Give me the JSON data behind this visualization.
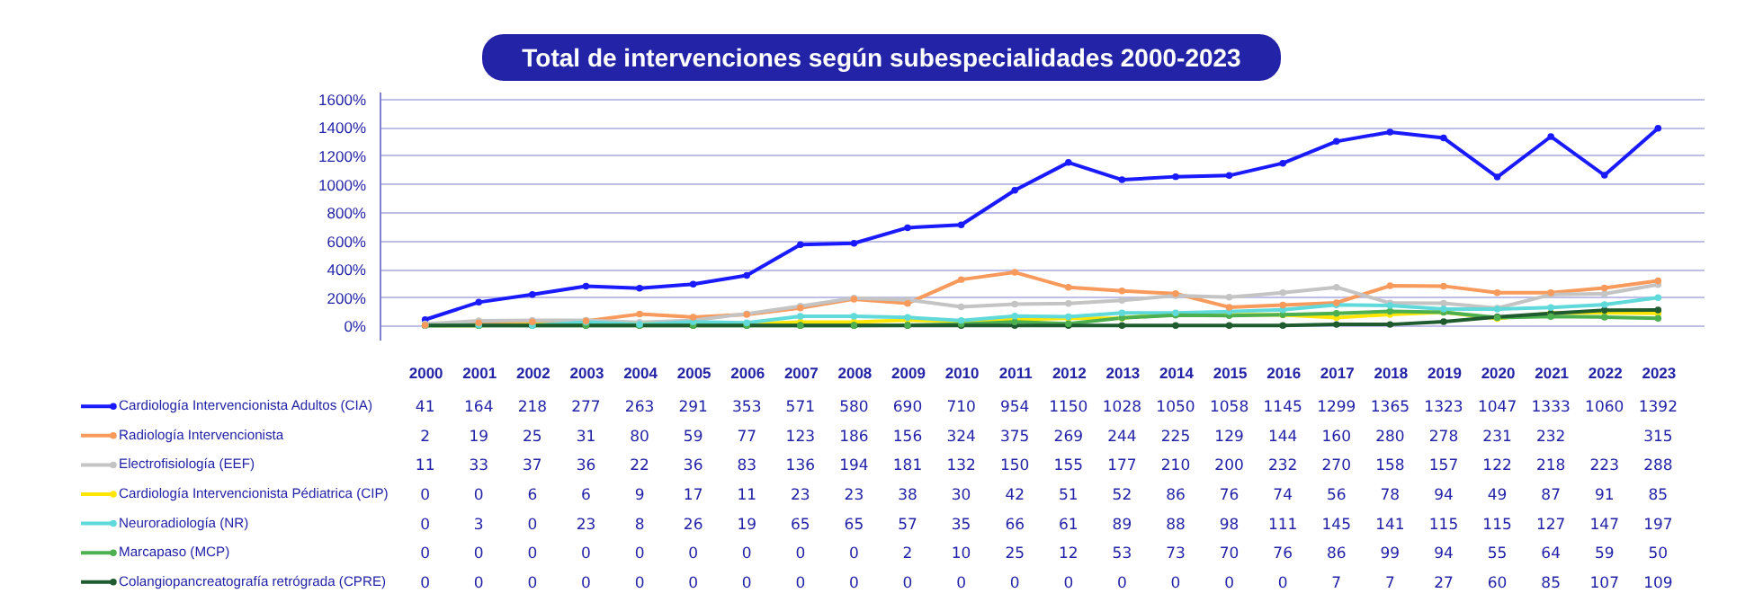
{
  "chart_data": {
    "type": "line",
    "title": "Total de intervenciones según subespecialidades 2000-2023",
    "categories": [
      "2000",
      "2001",
      "2002",
      "2003",
      "2004",
      "2005",
      "2006",
      "2007",
      "2008",
      "2009",
      "2010",
      "2011",
      "2012",
      "2013",
      "2014",
      "2015",
      "2016",
      "2017",
      "2018",
      "2019",
      "2020",
      "2021",
      "2022",
      "2023"
    ],
    "series": [
      {
        "name": "Cardiología Intervencionista Adultos (CIA)",
        "color": "#1a1aff",
        "values": [
          41,
          164,
          218,
          277,
          263,
          291,
          353,
          571,
          580,
          690,
          710,
          954,
          1150,
          1028,
          1050,
          1058,
          1145,
          1299,
          1365,
          1323,
          1047,
          1333,
          1060,
          1392
        ]
      },
      {
        "name": "Radiología Intervencionista",
        "color": "#f79a5b",
        "values": [
          2,
          19,
          25,
          31,
          80,
          59,
          77,
          123,
          186,
          156,
          324,
          375,
          269,
          244,
          225,
          129,
          144,
          160,
          280,
          278,
          231,
          232,
          265,
          315
        ],
        "value_labels": [
          "2",
          "19",
          "25",
          "31",
          "80",
          "59",
          "77",
          "123",
          "186",
          "156",
          "324",
          "375",
          "269",
          "244",
          "225",
          "129",
          "144",
          "160",
          "280",
          "278",
          "231",
          "232",
          null,
          "315"
        ]
      },
      {
        "name": "Electrofisiología (EEF)",
        "color": "#c4c4c4",
        "values": [
          11,
          33,
          37,
          36,
          22,
          36,
          83,
          136,
          194,
          181,
          132,
          150,
          155,
          177,
          210,
          200,
          232,
          270,
          158,
          157,
          122,
          218,
          223,
          288
        ]
      },
      {
        "name": "Cardiología Intervencionista Pédiatrica (CIP)",
        "color": "#ffe600",
        "values": [
          0,
          0,
          6,
          6,
          9,
          17,
          11,
          23,
          23,
          38,
          30,
          42,
          51,
          52,
          86,
          76,
          74,
          56,
          78,
          94,
          49,
          87,
          91,
          85
        ]
      },
      {
        "name": "Neuroradiología (NR)",
        "color": "#5fd9d9",
        "values": [
          0,
          3,
          0,
          23,
          8,
          26,
          19,
          65,
          65,
          57,
          35,
          66,
          61,
          89,
          88,
          98,
          111,
          145,
          141,
          115,
          115,
          127,
          147,
          197
        ]
      },
      {
        "name": "Marcapaso (MCP)",
        "color": "#4caf50",
        "values": [
          0,
          0,
          0,
          0,
          0,
          0,
          0,
          0,
          0,
          2,
          10,
          25,
          12,
          53,
          73,
          70,
          76,
          86,
          99,
          94,
          55,
          64,
          59,
          50
        ]
      },
      {
        "name": "Colangiopancreatografía retrógrada (CPRE)",
        "color": "#1e5b2e",
        "values": [
          0,
          0,
          0,
          0,
          0,
          0,
          0,
          0,
          0,
          0,
          0,
          0,
          0,
          0,
          0,
          0,
          0,
          7,
          7,
          27,
          60,
          85,
          107,
          109
        ]
      }
    ],
    "ylim": [
      -100,
      1650
    ],
    "yticks": [
      {
        "value": 0,
        "label": "0%"
      },
      {
        "value": 200,
        "label": "200%"
      },
      {
        "value": 400,
        "label": "400%"
      },
      {
        "value": 600,
        "label": "600%"
      },
      {
        "value": 800,
        "label": "800%"
      },
      {
        "value": 1000,
        "label": "1000%"
      },
      {
        "value": 1200,
        "label": "1200%"
      },
      {
        "value": 1400,
        "label": "1400%"
      },
      {
        "value": 1600,
        "label": "1600%"
      }
    ],
    "grid": "y",
    "legend": "bottom left",
    "marker": "circle",
    "line_style": "solid",
    "data_labels": true
  }
}
